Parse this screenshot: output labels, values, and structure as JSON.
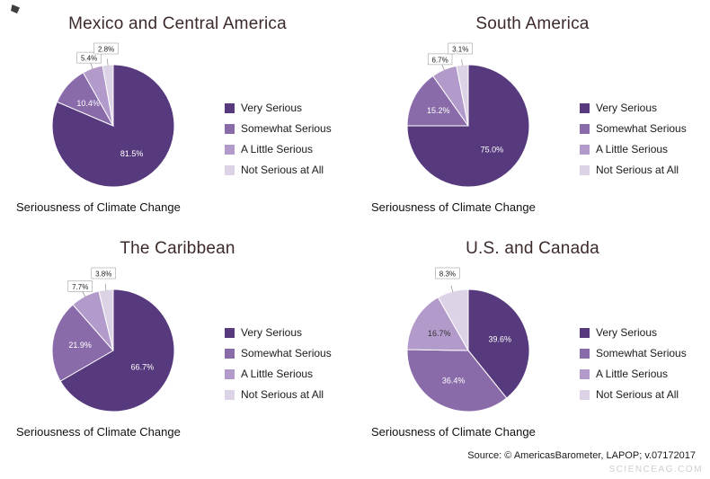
{
  "source_note": "Source: © AmericasBarometer, LAPOP; v.07172017",
  "watermark": "SCIENCEAG.COM",
  "chart_data": [
    {
      "type": "pie",
      "title": "Mexico and Central America",
      "caption": "Seriousness of Climate Change",
      "labels": [
        "Very Serious",
        "Somewhat Serious",
        "A Little Serious",
        "Not Serious at All"
      ],
      "values": [
        81.5,
        10.4,
        5.4,
        2.8
      ],
      "colors": [
        "#573a7e",
        "#8a6baa",
        "#b29bcb",
        "#dcd3e6"
      ],
      "start_angle": 0,
      "direction": "clockwise",
      "legend_position": "right"
    },
    {
      "type": "pie",
      "title": "South America",
      "caption": "Seriousness of Climate Change",
      "labels": [
        "Very Serious",
        "Somewhat Serious",
        "A Little Serious",
        "Not Serious at All"
      ],
      "values": [
        75.0,
        15.2,
        6.7,
        3.1
      ],
      "colors": [
        "#573a7e",
        "#8a6baa",
        "#b29bcb",
        "#dcd3e6"
      ],
      "start_angle": 0,
      "direction": "clockwise",
      "legend_position": "right"
    },
    {
      "type": "pie",
      "title": "The Caribbean",
      "caption": "Seriousness of Climate Change",
      "labels": [
        "Very Serious",
        "Somewhat Serious",
        "A Little Serious",
        "Not Serious at All"
      ],
      "values": [
        66.7,
        21.9,
        7.7,
        3.8
      ],
      "colors": [
        "#573a7e",
        "#8a6baa",
        "#b29bcb",
        "#dcd3e6"
      ],
      "start_angle": 0,
      "direction": "clockwise",
      "legend_position": "right"
    },
    {
      "type": "pie",
      "title": "U.S. and Canada",
      "caption": "Seriousness of Climate Change",
      "labels": [
        "Very Serious",
        "Somewhat Serious",
        "A Little Serious",
        "Not Serious at All"
      ],
      "values": [
        39.6,
        36.4,
        16.7,
        8.3
      ],
      "colors": [
        "#573a7e",
        "#8a6baa",
        "#b29bcb",
        "#dcd3e6"
      ],
      "start_angle": 0,
      "direction": "clockwise",
      "legend_position": "right"
    }
  ]
}
